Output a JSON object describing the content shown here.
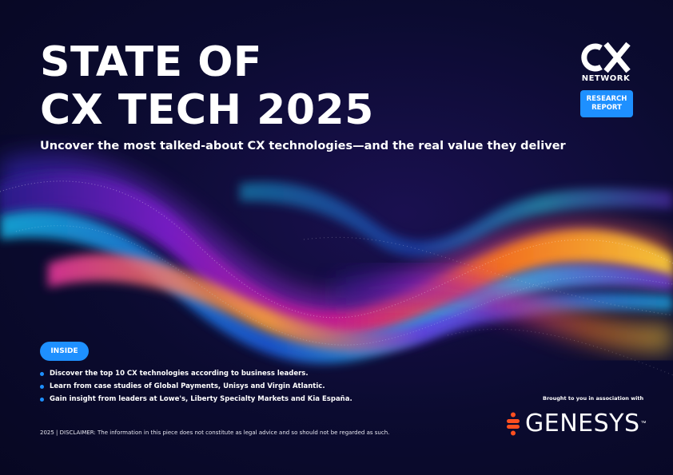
{
  "cover": {
    "title_line1": "STATE OF",
    "title_line2": "CX TECH 2025",
    "subtitle": "Uncover the most talked-about CX technologies—and the real value they deliver"
  },
  "brand": {
    "logo_letters": "CX",
    "logo_network": "NETWORK",
    "badge_line1": "RESEARCH",
    "badge_line2": "REPORT"
  },
  "inside": {
    "label": "INSIDE",
    "items": [
      "Discover the top 10 CX technologies according to business leaders.",
      "Learn from case studies of Global Payments, Unisys and Virgin Atlantic.",
      "Gain insight from leaders at Lowe's, Liberty Specialty Markets and Kia España."
    ]
  },
  "sponsor": {
    "brought_by": "Brought to you in association with",
    "name": "GENESYS",
    "trademark": "™"
  },
  "footer": {
    "text": "2025 | DISCLAIMER: The information in this piece does not constitute as legal advice and so should not be regarded as such."
  },
  "colors": {
    "background": "#0b0b30",
    "accent_blue": "#1e90ff",
    "genesys_orange": "#ff4f1f"
  }
}
